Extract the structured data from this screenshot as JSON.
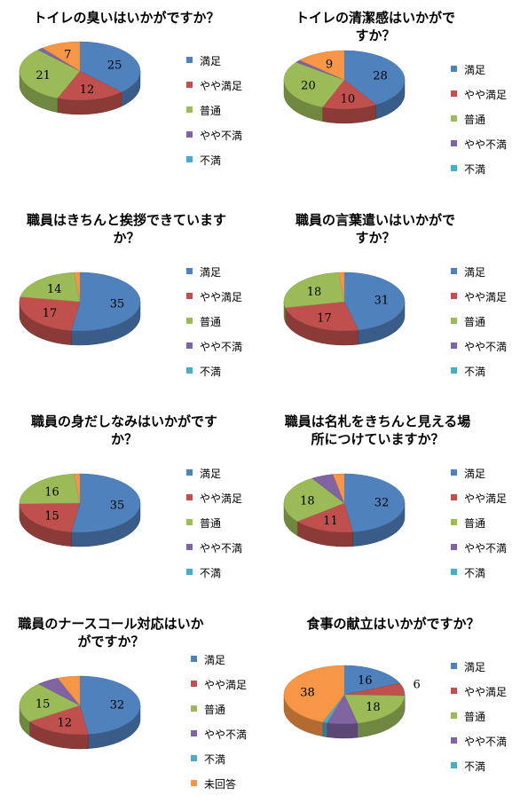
{
  "colors": {
    "満足": "#4f81bd",
    "やや満足": "#c0504d",
    "普通": "#9bbb59",
    "やや不満": "#8064a2",
    "不満": "#4bacc6",
    "未回答": "#f79646"
  },
  "chart_data": [
    {
      "type": "pie",
      "title": "トイレの臭いはいかがですか？",
      "categories": [
        "満足",
        "やや満足",
        "普通",
        "やや不満",
        "不満",
        "未回答"
      ],
      "values": [
        25,
        12,
        21,
        1,
        0,
        7
      ],
      "labels": [
        "25",
        "12",
        "21",
        "",
        "",
        "7"
      ],
      "legend": [
        "満足",
        "やや満足",
        "普通",
        "やや不満",
        "不満"
      ]
    },
    {
      "type": "pie",
      "title": "トイレの清潔感はいかがですか？",
      "categories": [
        "満足",
        "やや満足",
        "普通",
        "やや不満",
        "不満",
        "未回答"
      ],
      "values": [
        28,
        10,
        20,
        1,
        0,
        9
      ],
      "labels": [
        "28",
        "10",
        "20",
        "",
        "",
        "9"
      ],
      "legend": [
        "満足",
        "やや満足",
        "普通",
        "やや不満",
        "不満"
      ]
    },
    {
      "type": "pie",
      "title": "職員はきちんと挨拶できていますか？",
      "categories": [
        "満足",
        "やや満足",
        "普通",
        "やや不満",
        "不満",
        "未回答"
      ],
      "values": [
        35,
        17,
        14,
        0,
        0,
        1
      ],
      "labels": [
        "35",
        "17",
        "14",
        "",
        "",
        ""
      ],
      "legend": [
        "満足",
        "やや満足",
        "普通",
        "やや不満",
        "不満"
      ]
    },
    {
      "type": "pie",
      "title": "職員の言葉遣いはいかがですか？",
      "categories": [
        "満足",
        "やや満足",
        "普通",
        "やや不満",
        "不満",
        "未回答"
      ],
      "values": [
        31,
        17,
        18,
        0,
        0,
        1
      ],
      "labels": [
        "31",
        "17",
        "18",
        "",
        "",
        ""
      ],
      "legend": [
        "満足",
        "やや満足",
        "普通",
        "やや不満",
        "不満"
      ]
    },
    {
      "type": "pie",
      "title": "職員の身だしなみはいかがですか？",
      "categories": [
        "満足",
        "やや満足",
        "普通",
        "やや不満",
        "不満",
        "未回答"
      ],
      "values": [
        35,
        15,
        16,
        0,
        0,
        1
      ],
      "labels": [
        "35",
        "15",
        "16",
        "",
        "",
        ""
      ],
      "legend": [
        "満足",
        "やや満足",
        "普通",
        "やや不満",
        "不満"
      ]
    },
    {
      "type": "pie",
      "title": "職員は名札をきちんと見える場所につけていますか？",
      "categories": [
        "満足",
        "やや満足",
        "普通",
        "やや不満",
        "不満",
        "未回答"
      ],
      "values": [
        32,
        11,
        18,
        4,
        0,
        2
      ],
      "labels": [
        "32",
        "11",
        "18",
        "",
        "",
        ""
      ],
      "legend": [
        "満足",
        "やや満足",
        "普通",
        "やや不満",
        "不満"
      ]
    },
    {
      "type": "pie",
      "title": "職員のナースコール対応はいかがですか？",
      "categories": [
        "満足",
        "やや満足",
        "普通",
        "やや不満",
        "不満",
        "未回答"
      ],
      "values": [
        32,
        12,
        15,
        4,
        0,
        4
      ],
      "labels": [
        "32",
        "12",
        "15",
        "",
        "",
        ""
      ],
      "legend": [
        "満足",
        "やや満足",
        "普通",
        "やや不満",
        "不満",
        "未回答"
      ]
    },
    {
      "type": "pie",
      "title": "食事の献立はいかがですか？",
      "categories": [
        "満足",
        "やや満足",
        "普通",
        "やや不満",
        "不満",
        "未回答"
      ],
      "values": [
        16,
        6,
        18,
        7,
        1,
        38
      ],
      "labels": [
        "16",
        "6",
        "18",
        "",
        "",
        "38"
      ],
      "legend": [
        "満足",
        "やや満足",
        "普通",
        "やや不満",
        "不満"
      ]
    }
  ]
}
